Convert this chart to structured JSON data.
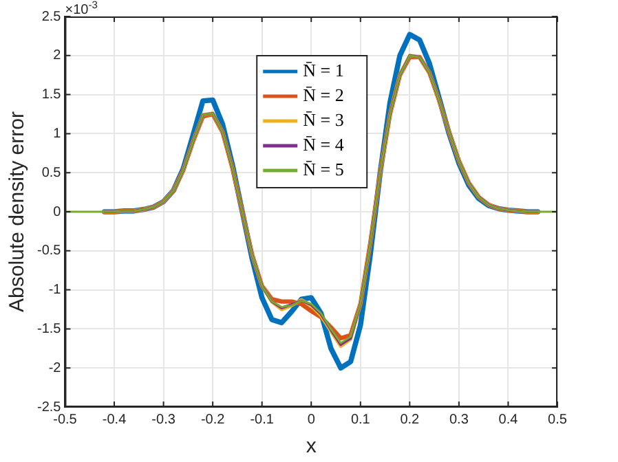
{
  "chart_data": {
    "type": "line",
    "xlabel": "x",
    "ylabel": "Absolute density error",
    "annotations": [
      "×10$^{-3}$"
    ],
    "x": [
      -0.5,
      -0.48,
      -0.46,
      -0.44,
      -0.42,
      -0.4,
      -0.38,
      -0.36,
      -0.34,
      -0.32,
      -0.3,
      -0.28,
      -0.26,
      -0.24,
      -0.22,
      -0.2,
      -0.18,
      -0.16,
      -0.14,
      -0.12,
      -0.1,
      -0.08,
      -0.06,
      -0.04,
      -0.02,
      0,
      0.02,
      0.04,
      0.06,
      0.08,
      0.1,
      0.12,
      0.14,
      0.16,
      0.18,
      0.2,
      0.22,
      0.24,
      0.26,
      0.28,
      0.3,
      0.32,
      0.34,
      0.36,
      0.38,
      0.4,
      0.42,
      0.44,
      0.46,
      0.48,
      0.5
    ],
    "series": [
      {
        "name": "N̄ = 1",
        "color": "#0072bd",
        "values": [
          null,
          null,
          null,
          null,
          0,
          0,
          0.01,
          0.01,
          0.03,
          0.06,
          0.13,
          0.27,
          0.55,
          0.98,
          1.42,
          1.43,
          1.12,
          0.6,
          0,
          -0.6,
          -1.1,
          -1.38,
          -1.42,
          -1.28,
          -1.12,
          -1.1,
          -1.3,
          -1.75,
          -2.0,
          -1.92,
          -1.45,
          -0.55,
          0.5,
          1.4,
          2.0,
          2.27,
          2.2,
          1.9,
          1.45,
          1.0,
          0.62,
          0.34,
          0.17,
          0.08,
          0.04,
          0.02,
          0.01,
          0,
          0,
          null,
          null
        ]
      },
      {
        "name": "N̄ = 2",
        "color": "#d95319",
        "values": [
          null,
          null,
          null,
          null,
          0,
          0,
          0.01,
          0.01,
          0.03,
          0.06,
          0.13,
          0.27,
          0.53,
          0.9,
          1.22,
          1.25,
          1.02,
          0.56,
          0,
          -0.55,
          -0.95,
          -1.12,
          -1.15,
          -1.15,
          -1.18,
          -1.27,
          -1.35,
          -1.48,
          -1.62,
          -1.58,
          -1.18,
          -0.4,
          0.5,
          1.25,
          1.75,
          1.98,
          1.98,
          1.78,
          1.42,
          1.02,
          0.65,
          0.37,
          0.19,
          0.09,
          0.04,
          0.02,
          0.01,
          0,
          0,
          null,
          null
        ]
      },
      {
        "name": "N̄ = 3",
        "color": "#edb120",
        "values": [
          null,
          null,
          null,
          null,
          0,
          0,
          0.01,
          0.01,
          0.03,
          0.06,
          0.13,
          0.27,
          0.53,
          0.9,
          1.24,
          1.26,
          1.02,
          0.56,
          0,
          -0.55,
          -0.95,
          -1.15,
          -1.25,
          -1.2,
          -1.13,
          -1.2,
          -1.33,
          -1.53,
          -1.72,
          -1.63,
          -1.18,
          -0.4,
          0.5,
          1.25,
          1.75,
          2.0,
          1.98,
          1.78,
          1.42,
          1.02,
          0.65,
          0.37,
          0.19,
          0.09,
          0.04,
          0.02,
          0.01,
          0,
          0,
          null,
          null
        ]
      },
      {
        "name": "N̄ = 4",
        "color": "#7e2f8e",
        "values": [
          null,
          null,
          null,
          null,
          0,
          0,
          0.01,
          0.01,
          0.03,
          0.06,
          0.13,
          0.27,
          0.53,
          0.9,
          1.24,
          1.26,
          1.02,
          0.56,
          0,
          -0.55,
          -0.95,
          -1.15,
          -1.23,
          -1.19,
          -1.14,
          -1.19,
          -1.31,
          -1.51,
          -1.7,
          -1.62,
          -1.18,
          -0.4,
          0.5,
          1.25,
          1.75,
          2.0,
          1.98,
          1.78,
          1.42,
          1.02,
          0.65,
          0.37,
          0.19,
          0.09,
          0.04,
          0.02,
          0.01,
          0,
          0,
          null,
          null
        ]
      },
      {
        "name": "N̄ = 5",
        "color": "#77ac30",
        "values": [
          0,
          0,
          0,
          0,
          0,
          0,
          0.01,
          0.01,
          0.03,
          0.06,
          0.13,
          0.27,
          0.53,
          0.9,
          1.24,
          1.26,
          1.02,
          0.56,
          0,
          -0.55,
          -0.95,
          -1.15,
          -1.22,
          -1.2,
          -1.14,
          -1.18,
          -1.3,
          -1.5,
          -1.68,
          -1.6,
          -1.18,
          -0.4,
          0.5,
          1.25,
          1.75,
          2.0,
          1.98,
          1.78,
          1.42,
          1.02,
          0.65,
          0.37,
          0.19,
          0.09,
          0.04,
          0.02,
          0.01,
          0,
          0,
          0,
          0
        ]
      }
    ],
    "xlim": [
      -0.5,
      0.5
    ],
    "xticks": [
      -0.5,
      -0.4,
      -0.3,
      -0.2,
      -0.1,
      0,
      0.1,
      0.2,
      0.3,
      0.4,
      0.5
    ],
    "ylim": [
      -2.5,
      2.5
    ],
    "yticks": [
      -2.5,
      -2,
      -1.5,
      -1,
      -0.5,
      0,
      0.5,
      1,
      1.5,
      2,
      2.5
    ],
    "grid": true,
    "legend": "top",
    "marker": "none",
    "line_style": "solid"
  }
}
